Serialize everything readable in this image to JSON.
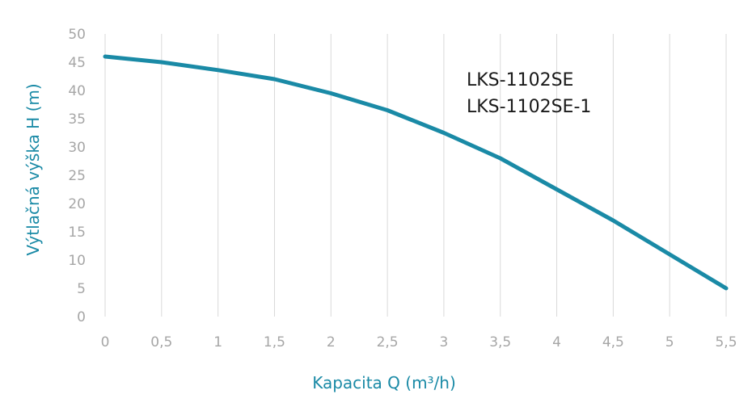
{
  "chart_data": {
    "type": "line",
    "title": "",
    "xlabel": "Kapacita Q (m³/h)",
    "ylabel": "Výtlačná výška H (m)",
    "annotations": [
      "LKS-1102SE",
      "LKS-1102SE-1"
    ],
    "x_ticks": [
      "0",
      "0,5",
      "1",
      "1,5",
      "2",
      "2,5",
      "3",
      "3,5",
      "4",
      "4,5",
      "5",
      "5,5"
    ],
    "y_ticks": [
      "0",
      "5",
      "10",
      "15",
      "20",
      "25",
      "30",
      "35",
      "40",
      "45",
      "50"
    ],
    "xlim": [
      0,
      5.5
    ],
    "ylim": [
      0,
      50
    ],
    "grid": "vertical",
    "legend": "none",
    "colors": {
      "series": "#1a8aa6",
      "axis_title": "#1a8aa6",
      "grid": "#d9d9d9",
      "tick": "#a6a6a6"
    },
    "series": [
      {
        "x": [
          0,
          0.5,
          1,
          1.5,
          2,
          2.5,
          3,
          3.5,
          4,
          4.5,
          5,
          5.5
        ],
        "y": [
          46,
          45,
          43.6,
          42,
          39.5,
          36.5,
          32.5,
          28,
          22.5,
          17,
          11,
          5
        ]
      }
    ]
  }
}
